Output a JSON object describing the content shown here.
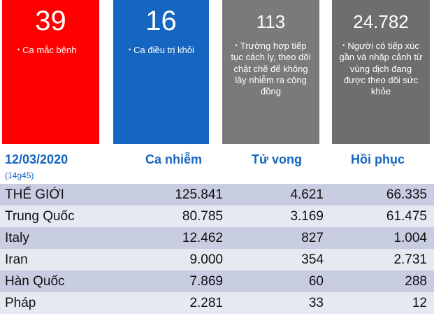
{
  "cards": [
    {
      "number": "39",
      "text": "Ca mắc bệnh"
    },
    {
      "number": "16",
      "text": "Ca điều trị khỏi"
    },
    {
      "number": "113",
      "text": "Trường hợp tiếp tục cách ly, theo dõi chặt chẽ để không lây nhiễm ra cộng đồng"
    },
    {
      "number": "24.782",
      "text": "Người có tiếp xúc gần và nhập cảnh từ vùng dịch đang được theo dõi sức khỏe"
    }
  ],
  "colors": {
    "red": "#ff0000",
    "blue": "#1566c0",
    "gray": "#7a7a7a",
    "header_text": "#1565c0"
  },
  "table": {
    "date": "12/03/2020",
    "time": "(14g45)",
    "headers": {
      "cases": "Ca nhiễm",
      "deaths": "Tử vong",
      "recovered": "Hồi phục"
    },
    "rows": [
      {
        "country": "THẾ GIỚI",
        "cases": "125.841",
        "deaths": "4.621",
        "recovered": "66.335"
      },
      {
        "country": "Trung Quốc",
        "cases": "80.785",
        "deaths": "3.169",
        "recovered": "61.475"
      },
      {
        "country": "Italy",
        "cases": "12.462",
        "deaths": "827",
        "recovered": "1.004"
      },
      {
        "country": "Iran",
        "cases": "9.000",
        "deaths": "354",
        "recovered": "2.731"
      },
      {
        "country": "Hàn Quốc",
        "cases": "7.869",
        "deaths": "60",
        "recovered": "288"
      },
      {
        "country": "Pháp",
        "cases": "2.281",
        "deaths": "33",
        "recovered": "12"
      }
    ]
  }
}
